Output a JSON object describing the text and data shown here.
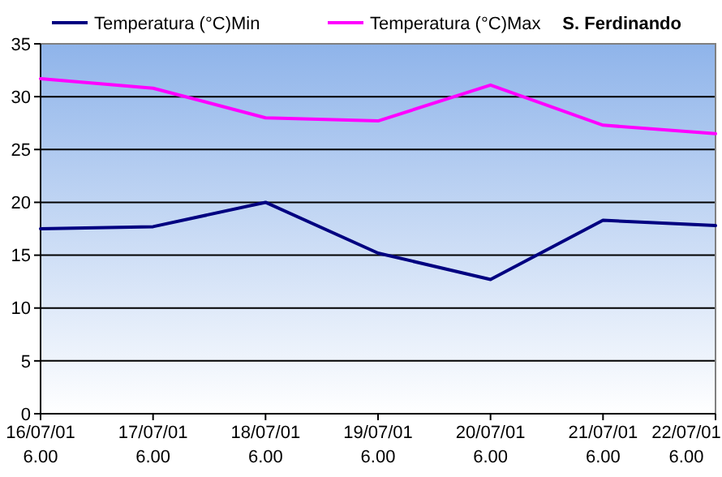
{
  "chart_data": {
    "type": "line",
    "title": "S. Ferdinando",
    "categories": [
      "16/07/01\n6.00",
      "17/07/01\n6.00",
      "18/07/01\n6.00",
      "19/07/01\n6.00",
      "20/07/01\n6.00",
      "21/07/01\n6.00",
      "22/07/01\n6.00"
    ],
    "series": [
      {
        "name": "Temperatura (°C)Min",
        "color": "#000080",
        "values": [
          17.5,
          17.7,
          20.0,
          15.2,
          12.7,
          18.3,
          17.8
        ]
      },
      {
        "name": "Temperatura (°C)Max",
        "color": "#ff00ff",
        "values": [
          31.7,
          30.8,
          28.0,
          27.7,
          31.1,
          27.3,
          26.5
        ]
      }
    ],
    "ylim": [
      0,
      35
    ],
    "yticks": [
      0,
      5,
      10,
      15,
      20,
      25,
      30,
      35
    ],
    "grid": "y",
    "legend": "top",
    "marker": "none",
    "line_style": "solid"
  }
}
